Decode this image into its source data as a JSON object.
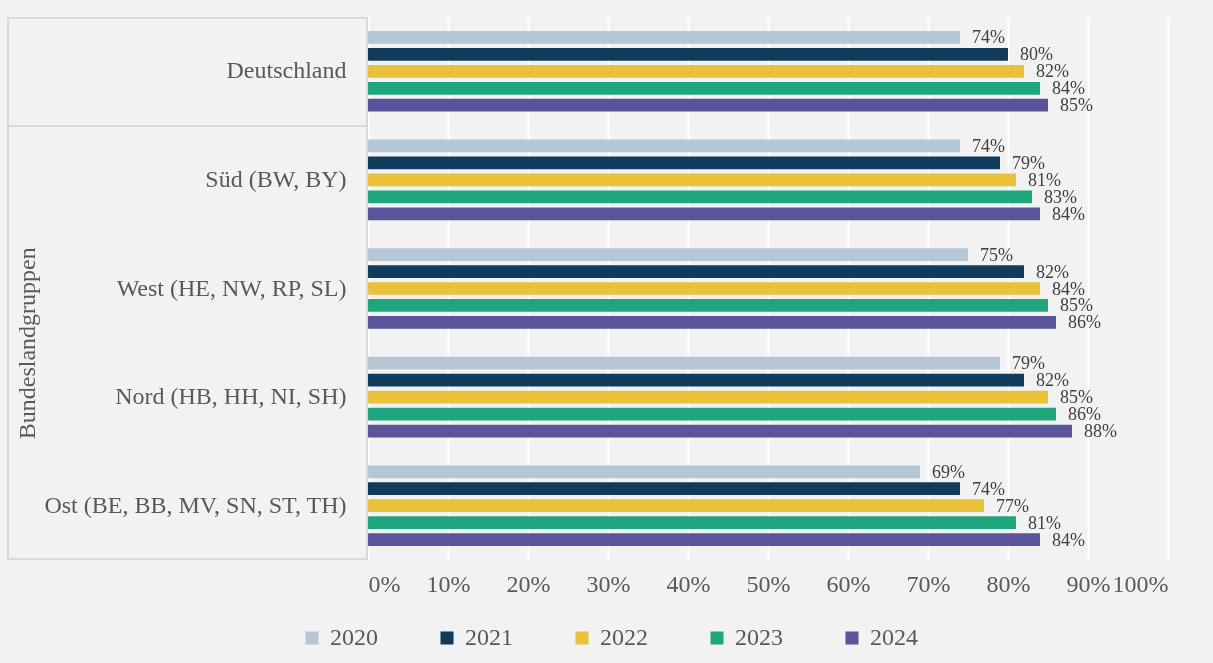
{
  "chart_data": {
    "type": "bar",
    "orientation": "horizontal",
    "ylabel": "Bundeslandgruppen",
    "categories": [
      "Deutschland",
      "Süd (BW, BY)",
      "West (HE, NW, RP, SL)",
      "Nord (HB, HH, NI, SH)",
      "Ost (BE, BB, MV, SN, ST, TH)"
    ],
    "series": [
      {
        "name": "2020",
        "color": "#b5c7d5",
        "values": [
          74,
          74,
          75,
          79,
          69
        ],
        "value_labels": [
          "74%",
          "74%",
          "75%",
          "79%",
          "69%"
        ]
      },
      {
        "name": "2021",
        "color": "#103b5c",
        "values": [
          80,
          79,
          82,
          82,
          74
        ],
        "value_labels": [
          "80%",
          "79%",
          "82%",
          "82%",
          "74%"
        ]
      },
      {
        "name": "2022",
        "color": "#e9c23a",
        "values": [
          82,
          81,
          84,
          85,
          77
        ],
        "value_labels": [
          "82%",
          "81%",
          "84%",
          "85%",
          "77%"
        ]
      },
      {
        "name": "2023",
        "color": "#20a67f",
        "values": [
          84,
          83,
          85,
          86,
          81
        ],
        "value_labels": [
          "84%",
          "83%",
          "85%",
          "86%",
          "81%"
        ]
      },
      {
        "name": "2024",
        "color": "#5a559b",
        "values": [
          85,
          84,
          86,
          88,
          84
        ],
        "value_labels": [
          "85%",
          "84%",
          "86%",
          "88%",
          "84%"
        ]
      }
    ],
    "xlim": [
      0,
      100
    ],
    "xticks": [
      {
        "value": 0,
        "label": "0%"
      },
      {
        "value": 10,
        "label": "10%"
      },
      {
        "value": 20,
        "label": "20%"
      },
      {
        "value": 30,
        "label": "30%"
      },
      {
        "value": 40,
        "label": "40%"
      },
      {
        "value": 50,
        "label": "50%"
      },
      {
        "value": 60,
        "label": "60%"
      },
      {
        "value": 70,
        "label": "70%"
      },
      {
        "value": 80,
        "label": "80%"
      },
      {
        "value": 90,
        "label": "90%"
      },
      {
        "value": 100,
        "label": "100%"
      }
    ],
    "grid": "x",
    "legend": "bottom"
  }
}
